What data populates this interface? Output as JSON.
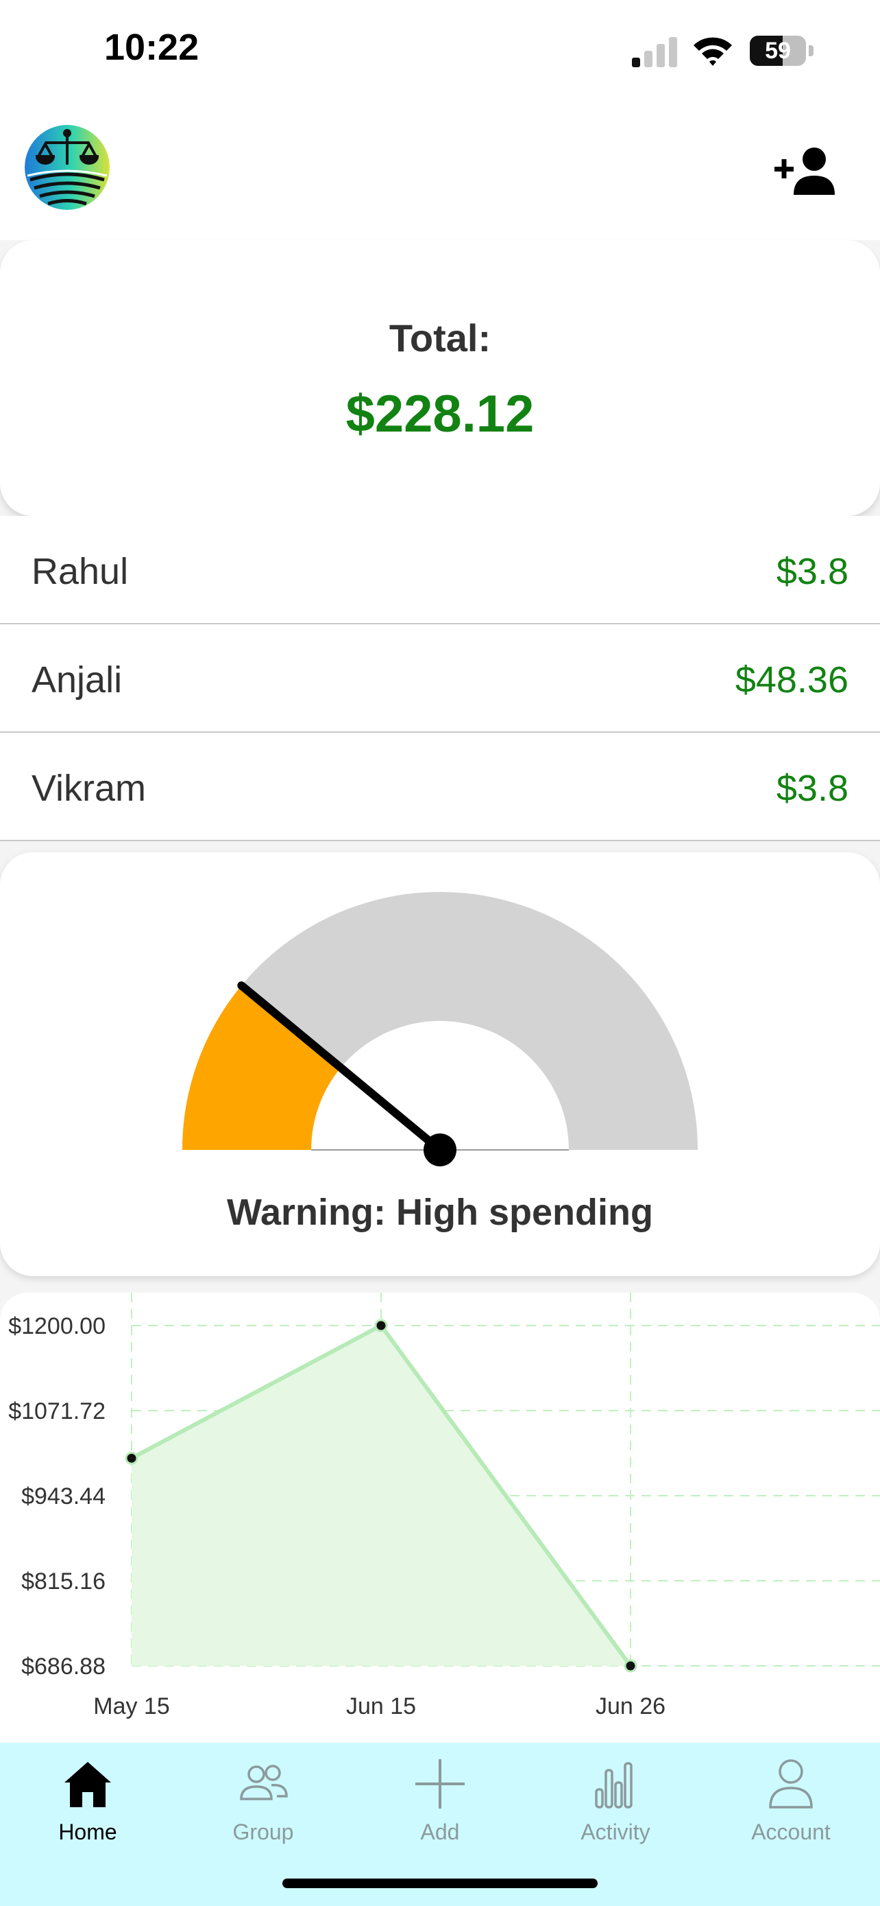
{
  "status_bar": {
    "time": "10:22",
    "battery": "59",
    "battery_level": 0.59
  },
  "header": {
    "logo_icon": "scales-logo-icon",
    "add_user_icon": "add-user-icon"
  },
  "total": {
    "label": "Total:",
    "value": "$228.12"
  },
  "members": [
    {
      "name": "Rahul",
      "amount": "$3.8"
    },
    {
      "name": "Anjali",
      "amount": "$48.36"
    },
    {
      "name": "Vikram",
      "amount": "$3.8"
    }
  ],
  "gauge": {
    "status": "Warning: High spending",
    "level": 0.22,
    "fill_color": "#ffa500",
    "track_color": "#d3d3d3"
  },
  "chart_data": {
    "type": "area",
    "x": [
      "May 15",
      "Jun 15",
      "Jun 26"
    ],
    "values": [
      1000,
      1200,
      686.88
    ],
    "y_ticks": [
      "$1200.00",
      "$1071.72",
      "$943.44",
      "$815.16",
      "$686.88"
    ],
    "ylim": [
      686.88,
      1200
    ],
    "grid": true,
    "line_color": "#b6eab6",
    "fill_color": "#e6f7e4",
    "grid_color": "#bff0bf"
  },
  "nav": [
    {
      "label": "Home",
      "icon": "home-icon",
      "active": true
    },
    {
      "label": "Group",
      "icon": "group-icon",
      "active": false
    },
    {
      "label": "Add",
      "icon": "plus-icon",
      "active": false
    },
    {
      "label": "Activity",
      "icon": "activity-chart-icon",
      "active": false
    },
    {
      "label": "Account",
      "icon": "account-icon",
      "active": false
    }
  ]
}
